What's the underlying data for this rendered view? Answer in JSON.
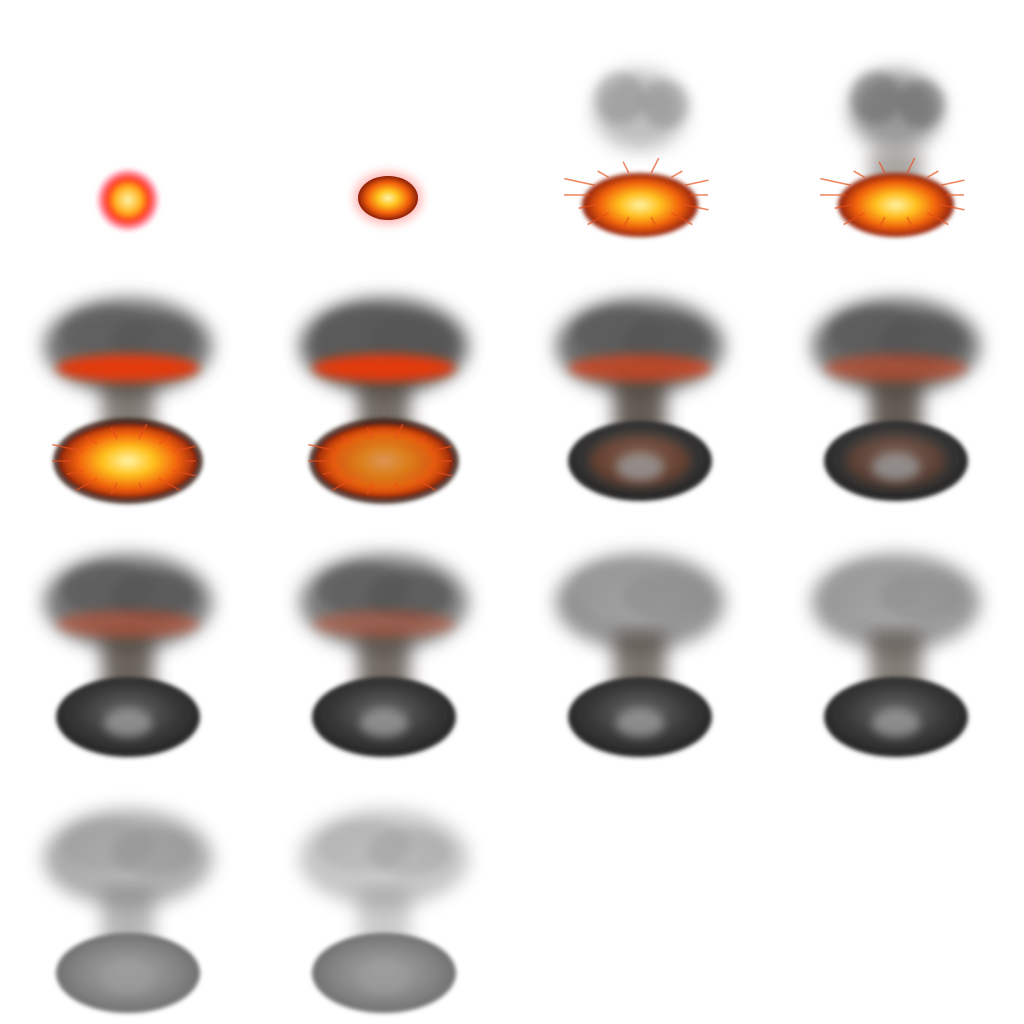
{
  "sprite_sheet": {
    "columns": 4,
    "rows": 4,
    "frames": [
      {
        "index": 1,
        "fire": 1.0,
        "smoke": 0.0,
        "sparks": false,
        "ring": true
      },
      {
        "index": 2,
        "fire": 0.95,
        "smoke": 0.05,
        "sparks": false,
        "ring": false
      },
      {
        "index": 3,
        "fire": 1.0,
        "smoke": 0.35,
        "sparks": true,
        "ring": false
      },
      {
        "index": 4,
        "fire": 1.0,
        "smoke": 0.55,
        "sparks": true,
        "ring": false
      },
      {
        "index": 5,
        "fire": 0.9,
        "smoke": 0.8,
        "sparks": true,
        "ring": false
      },
      {
        "index": 6,
        "fire": 0.55,
        "smoke": 0.9,
        "sparks": true,
        "ring": false
      },
      {
        "index": 7,
        "fire": 0.3,
        "smoke": 1.0,
        "sparks": false,
        "ring": false
      },
      {
        "index": 8,
        "fire": 0.22,
        "smoke": 1.0,
        "sparks": false,
        "ring": false
      },
      {
        "index": 9,
        "fire": 0.18,
        "smoke": 0.95,
        "sparks": false,
        "ring": false
      },
      {
        "index": 10,
        "fire": 0.15,
        "smoke": 0.9,
        "sparks": false,
        "ring": false
      },
      {
        "index": 11,
        "fire": 0.06,
        "smoke": 0.85,
        "sparks": false,
        "ring": false
      },
      {
        "index": 12,
        "fire": 0.02,
        "smoke": 0.8,
        "sparks": false,
        "ring": false
      },
      {
        "index": 13,
        "fire": 0.0,
        "smoke": 0.65,
        "sparks": false,
        "ring": false
      },
      {
        "index": 14,
        "fire": 0.0,
        "smoke": 0.45,
        "sparks": false,
        "ring": false
      }
    ]
  },
  "colors": {
    "background": "#ffffff",
    "fire_core": "#fff4a8",
    "fire_mid": "#ffb020",
    "fire_outer": "#e8420a",
    "glow_red": "#ff1a2a",
    "smoke_dark": "#2e2e2e",
    "smoke_light": "#9a9a9a"
  }
}
